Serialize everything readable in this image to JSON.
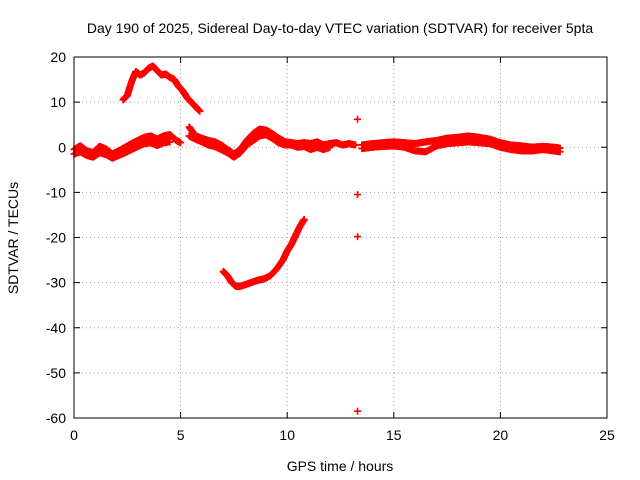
{
  "chart_data": {
    "type": "scatter",
    "title": "Day 190 of 2025, Sidereal Day-to-day VTEC variation (SDTVAR) for receiver 5pta",
    "xlabel": "GPS time / hours",
    "ylabel": "SDTVAR / TECUs",
    "xlim": [
      0,
      25
    ],
    "ylim": [
      -60,
      20
    ],
    "x_ticks": [
      0,
      5,
      10,
      15,
      20,
      25
    ],
    "y_ticks": [
      -60,
      -50,
      -40,
      -30,
      -20,
      -10,
      0,
      10,
      20
    ],
    "x_tick_labels": [
      "0",
      "5",
      "10",
      "15",
      "20",
      "25"
    ],
    "y_tick_labels": [
      "-60",
      "-50",
      "-40",
      "-30",
      "-20",
      "-10",
      "0",
      "10",
      "20"
    ],
    "grid": true,
    "legend": "none",
    "marker": "plus",
    "series_color": "#ff0000",
    "series": [
      {
        "name": "main-band",
        "x": [
          0.0,
          0.3,
          0.6,
          0.9,
          1.2,
          1.5,
          1.8,
          2.1,
          2.4,
          2.7,
          3.0,
          3.3,
          3.6,
          3.9,
          4.2,
          4.5,
          4.8,
          5.0
        ],
        "y": [
          -0.5,
          0.3,
          -0.8,
          -1.2,
          0.2,
          -0.4,
          -1.5,
          -0.8,
          0.0,
          0.8,
          1.5,
          2.2,
          2.5,
          1.8,
          2.5,
          2.8,
          1.5,
          1.0
        ]
      },
      {
        "name": "main-band-lower",
        "x": [
          0.0,
          0.3,
          0.6,
          0.9,
          1.2,
          1.5,
          1.8,
          2.1,
          2.4,
          2.7,
          3.0,
          3.3,
          3.6,
          3.9,
          4.2,
          4.5
        ],
        "y": [
          -1.5,
          -1.0,
          -1.8,
          -2.2,
          -1.2,
          -1.6,
          -2.4,
          -1.8,
          -1.2,
          -0.5,
          0.2,
          0.8,
          1.0,
          0.4,
          1.0,
          1.2
        ]
      },
      {
        "name": "upper-arc",
        "x": [
          2.3,
          2.5,
          2.7,
          2.9,
          3.1,
          3.3,
          3.5,
          3.7,
          3.9,
          4.1,
          4.3,
          4.5,
          4.7,
          4.9,
          5.1,
          5.3,
          5.5,
          5.7,
          5.9
        ],
        "y": [
          10.5,
          11.5,
          14.5,
          16.8,
          16.0,
          16.5,
          17.5,
          18.0,
          17.0,
          16.0,
          16.2,
          15.5,
          15.0,
          13.5,
          12.5,
          11.0,
          10.0,
          9.0,
          8.0
        ]
      },
      {
        "name": "mid-band",
        "x": [
          5.4,
          5.7,
          6.0,
          6.3,
          6.6,
          6.9,
          7.2,
          7.5,
          7.8,
          8.1,
          8.4,
          8.7,
          9.0,
          9.3,
          9.6,
          9.9,
          10.2,
          10.5,
          10.8,
          11.1,
          11.4,
          11.7,
          12.0,
          12.3,
          12.6,
          12.9,
          13.2
        ],
        "y": [
          4.5,
          2.5,
          2.0,
          1.5,
          1.2,
          0.5,
          -0.5,
          -1.5,
          -0.5,
          1.5,
          3.0,
          4.0,
          3.8,
          3.0,
          2.0,
          1.2,
          1.0,
          0.8,
          1.0,
          0.8,
          1.2,
          0.5,
          0.8,
          1.0,
          0.5,
          0.8,
          0.5
        ]
      },
      {
        "name": "mid-band-lower",
        "x": [
          5.4,
          5.7,
          6.0,
          6.3,
          6.6,
          6.9,
          7.2,
          7.5,
          7.8,
          8.1,
          8.4,
          8.7,
          9.0,
          9.3,
          9.6,
          9.9,
          10.2,
          10.5,
          10.8,
          11.1,
          11.4,
          11.7,
          12.0
        ],
        "y": [
          2.5,
          1.8,
          1.2,
          0.5,
          0.2,
          -0.5,
          -1.2,
          -2.2,
          -1.2,
          0.5,
          1.5,
          2.5,
          2.8,
          2.0,
          1.0,
          0.5,
          0.5,
          0.0,
          0.2,
          -0.5,
          0.0,
          -0.5,
          0.0
        ]
      },
      {
        "name": "lower-arc",
        "x": [
          7.0,
          7.2,
          7.4,
          7.6,
          7.8,
          8.0,
          8.3,
          8.6,
          8.9,
          9.2,
          9.5,
          9.8,
          10.0,
          10.2,
          10.4,
          10.6,
          10.8
        ],
        "y": [
          -27.5,
          -28.5,
          -30.0,
          -30.8,
          -30.8,
          -30.5,
          -30.0,
          -29.5,
          -29.2,
          -28.5,
          -27.0,
          -25.0,
          -23.0,
          -21.5,
          -19.5,
          -17.5,
          -16.0
        ]
      },
      {
        "name": "outliers",
        "x": [
          13.3,
          13.3,
          13.3,
          13.3
        ],
        "y": [
          6.2,
          -10.5,
          -19.8,
          -58.5
        ]
      },
      {
        "name": "late-band",
        "x": [
          13.5,
          14.0,
          14.5,
          15.0,
          15.5,
          16.0,
          16.5,
          17.0,
          17.5,
          18.0,
          18.5,
          19.0,
          19.5,
          20.0,
          20.5,
          21.0,
          21.5,
          22.0,
          22.5,
          22.8
        ],
        "y": [
          0.5,
          0.8,
          1.0,
          1.2,
          1.0,
          0.8,
          1.2,
          1.5,
          2.0,
          2.2,
          2.5,
          2.2,
          1.8,
          1.0,
          0.5,
          0.3,
          0.0,
          0.2,
          0.0,
          -0.2
        ]
      },
      {
        "name": "late-band-lower",
        "x": [
          13.5,
          14.0,
          14.5,
          15.0,
          15.5,
          16.0,
          16.5,
          17.0,
          17.5,
          18.0,
          18.5,
          19.0,
          19.5,
          20.0,
          20.5,
          21.0,
          21.5,
          22.0,
          22.5,
          22.8
        ],
        "y": [
          -0.3,
          0.0,
          0.2,
          0.3,
          0.0,
          -0.8,
          -1.0,
          0.3,
          0.8,
          1.0,
          1.2,
          1.0,
          0.8,
          0.0,
          -0.5,
          -0.8,
          -0.8,
          -0.5,
          -0.8,
          -1.0
        ]
      }
    ]
  }
}
